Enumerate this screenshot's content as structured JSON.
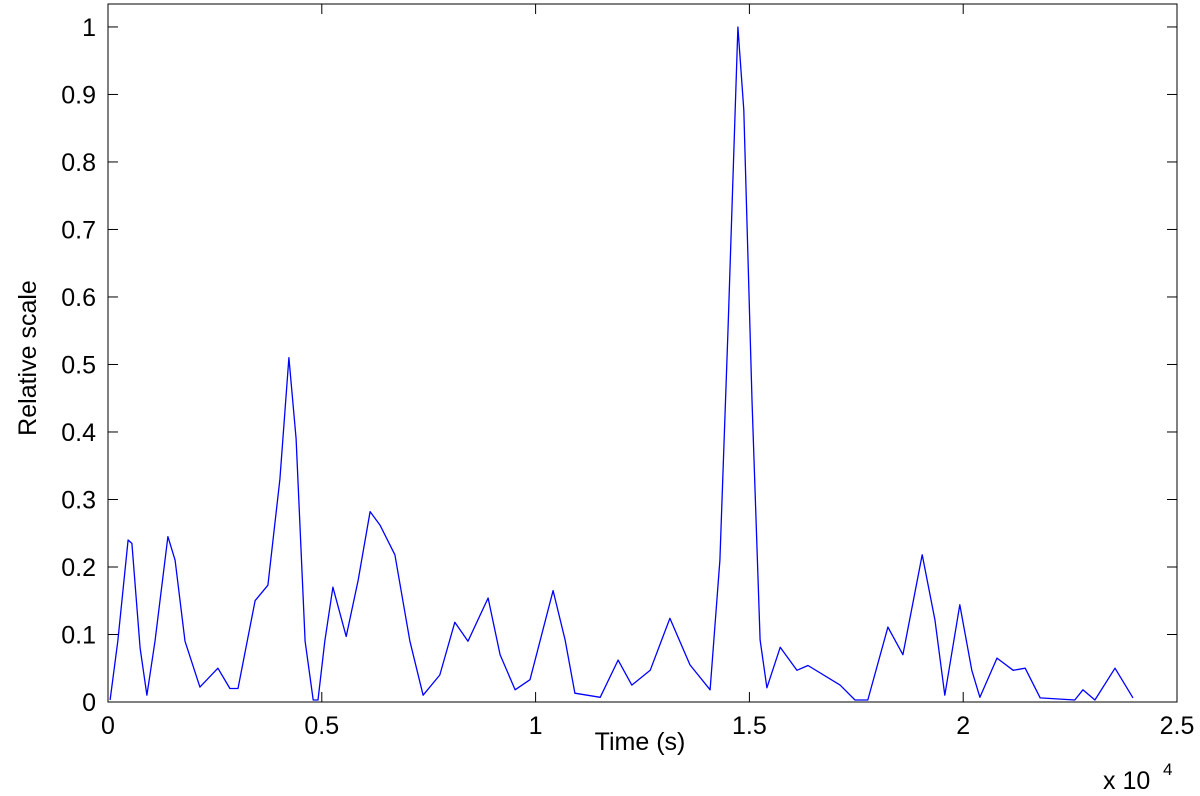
{
  "chart_data": {
    "type": "line",
    "x_label": "Time (s)",
    "y_label": "Relative scale",
    "x_multiplier": "x 10",
    "x_multiplier_exponent": "4",
    "xlim": [
      0,
      2.5
    ],
    "xticks": [
      0,
      0.5,
      1,
      1.5,
      2,
      2.5
    ],
    "ylim": [
      0,
      1.034
    ],
    "yticks": [
      0,
      0.1,
      0.2,
      0.3,
      0.4,
      0.5,
      0.6,
      0.7,
      0.8,
      0.9,
      1
    ],
    "grid": false,
    "series": [
      {
        "color": "#0000ff",
        "x": [
          0.005,
          0.023,
          0.047,
          0.056,
          0.075,
          0.091,
          0.11,
          0.14,
          0.157,
          0.18,
          0.215,
          0.257,
          0.285,
          0.304,
          0.344,
          0.374,
          0.402,
          0.423,
          0.44,
          0.461,
          0.48,
          0.491,
          0.507,
          0.526,
          0.557,
          0.585,
          0.613,
          0.636,
          0.671,
          0.706,
          0.737,
          0.776,
          0.811,
          0.842,
          0.889,
          0.917,
          0.952,
          0.987,
          1.041,
          1.069,
          1.092,
          1.151,
          1.193,
          1.225,
          1.268,
          1.314,
          1.361,
          1.408,
          1.431,
          1.45,
          1.473,
          1.487,
          1.506,
          1.525,
          1.541,
          1.572,
          1.611,
          1.637,
          1.712,
          1.747,
          1.777,
          1.824,
          1.859,
          1.904,
          1.934,
          1.957,
          1.992,
          2.02,
          2.039,
          2.079,
          2.117,
          2.145,
          2.18,
          2.261,
          2.28,
          2.308,
          2.355,
          2.397
        ],
        "values": [
          0.003,
          0.09,
          0.24,
          0.235,
          0.08,
          0.01,
          0.09,
          0.245,
          0.21,
          0.09,
          0.022,
          0.05,
          0.02,
          0.02,
          0.15,
          0.173,
          0.33,
          0.51,
          0.39,
          0.09,
          0.003,
          0.003,
          0.09,
          0.17,
          0.097,
          0.18,
          0.282,
          0.262,
          0.218,
          0.09,
          0.01,
          0.04,
          0.118,
          0.09,
          0.154,
          0.07,
          0.018,
          0.033,
          0.165,
          0.092,
          0.013,
          0.007,
          0.062,
          0.025,
          0.047,
          0.124,
          0.055,
          0.018,
          0.21,
          0.551,
          1.0,
          0.877,
          0.447,
          0.092,
          0.021,
          0.081,
          0.047,
          0.054,
          0.025,
          0.003,
          0.003,
          0.111,
          0.07,
          0.218,
          0.121,
          0.01,
          0.144,
          0.047,
          0.007,
          0.065,
          0.047,
          0.05,
          0.006,
          0.003,
          0.018,
          0.003,
          0.05,
          0.006
        ]
      }
    ]
  }
}
